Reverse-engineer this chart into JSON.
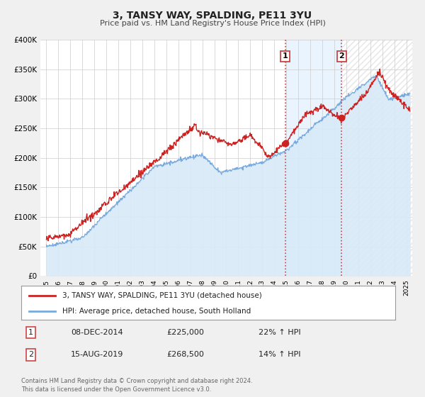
{
  "title": "3, TANSY WAY, SPALDING, PE11 3YU",
  "subtitle": "Price paid vs. HM Land Registry's House Price Index (HPI)",
  "ylim": [
    0,
    400000
  ],
  "yticks": [
    0,
    50000,
    100000,
    150000,
    200000,
    250000,
    300000,
    350000,
    400000
  ],
  "ytick_labels": [
    "£0",
    "£50K",
    "£100K",
    "£150K",
    "£200K",
    "£250K",
    "£300K",
    "£350K",
    "£400K"
  ],
  "xlim_start": 1994.5,
  "xlim_end": 2025.5,
  "xticks": [
    1995,
    1996,
    1997,
    1998,
    1999,
    2000,
    2001,
    2002,
    2003,
    2004,
    2005,
    2006,
    2007,
    2008,
    2009,
    2010,
    2011,
    2012,
    2013,
    2014,
    2015,
    2016,
    2017,
    2018,
    2019,
    2020,
    2021,
    2022,
    2023,
    2024,
    2025
  ],
  "line1_color": "#cc2222",
  "line2_color": "#7aaadd",
  "fill2_color": "#d8eaf8",
  "marker1_date": 2014.92,
  "marker1_value": 225000,
  "marker2_date": 2019.62,
  "marker2_value": 268500,
  "vline1_x": 2014.92,
  "vline2_x": 2019.62,
  "vline_color": "#cc4444",
  "shade_color": "#ddeeff",
  "legend_line1": "3, TANSY WAY, SPALDING, PE11 3YU (detached house)",
  "legend_line2": "HPI: Average price, detached house, South Holland",
  "table_row1": [
    "1",
    "08-DEC-2014",
    "£225,000",
    "22% ↑ HPI"
  ],
  "table_row2": [
    "2",
    "15-AUG-2019",
    "£268,500",
    "14% ↑ HPI"
  ],
  "footer": "Contains HM Land Registry data © Crown copyright and database right 2024.\nThis data is licensed under the Open Government Licence v3.0.",
  "background_color": "#f0f0f0",
  "plot_bg_color": "#ffffff",
  "grid_color": "#cccccc",
  "hatch_color": "#cccccc"
}
